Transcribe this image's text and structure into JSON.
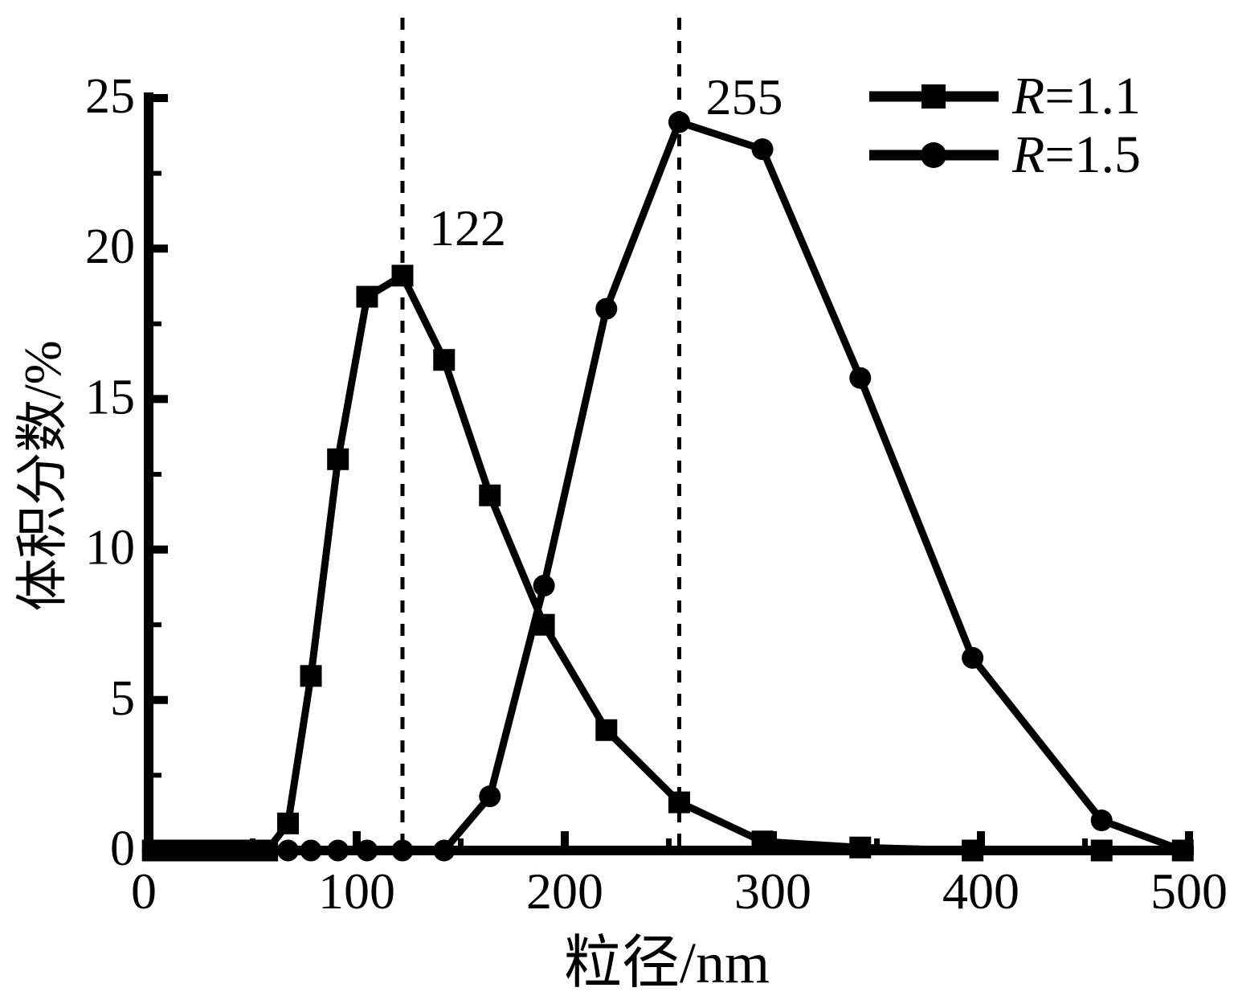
{
  "figure": {
    "background": "#ffffff",
    "ink": "#000000"
  },
  "chart_data": {
    "type": "line",
    "title": "",
    "xlabel": "粒径/nm",
    "ylabel": "体积分数/%",
    "xlim": [
      0,
      500
    ],
    "ylim": [
      0,
      25
    ],
    "x_ticks": [
      0,
      100,
      200,
      300,
      400,
      500
    ],
    "y_ticks": [
      0,
      5,
      10,
      15,
      20,
      25
    ],
    "x_minor_tick_step": 50,
    "y_minor_tick_step": 2.5,
    "grid": false,
    "legend": {
      "position": "top-right",
      "entries": [
        {
          "label": "R=1.1",
          "marker": "square"
        },
        {
          "label": "R=1.5",
          "marker": "circle"
        }
      ]
    },
    "annotations": [
      {
        "text": "122",
        "x": 122,
        "style": "dashed-vertical-guide"
      },
      {
        "text": "255",
        "x": 255,
        "style": "dashed-vertical-guide"
      }
    ],
    "x": [
      2,
      6,
      10,
      15,
      20,
      25,
      30,
      36,
      42,
      49,
      57,
      67,
      78,
      91,
      105,
      122,
      142,
      164,
      190,
      220,
      255,
      295,
      342,
      396,
      458,
      497
    ],
    "series": [
      {
        "name": "R=1.1",
        "marker": "square",
        "values": [
          0,
          0,
          0,
          0,
          0,
          0,
          0,
          0,
          0,
          0,
          0,
          0.9,
          5.8,
          13.0,
          18.4,
          19.1,
          16.3,
          11.8,
          7.5,
          4.0,
          1.6,
          0.3,
          0.1,
          0,
          0,
          0
        ]
      },
      {
        "name": "R=1.5",
        "marker": "circle",
        "values": [
          0,
          0,
          0,
          0,
          0,
          0,
          0,
          0,
          0,
          0,
          0,
          0,
          0,
          0,
          0,
          0,
          0,
          1.8,
          8.8,
          18.0,
          24.2,
          23.3,
          15.7,
          6.4,
          1.0,
          0
        ]
      }
    ]
  }
}
